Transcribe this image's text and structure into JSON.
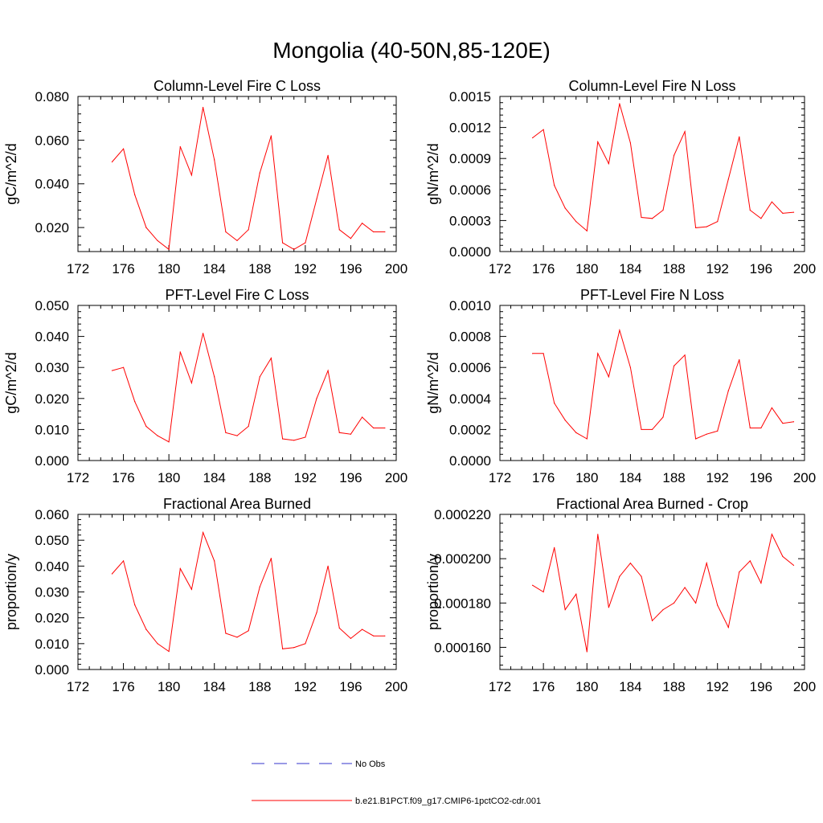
{
  "figure": {
    "title": "Mongolia (40-50N,85-120E)"
  },
  "legend": {
    "items": [
      {
        "label": "No Obs",
        "color": "#3333cc",
        "dash": "dashed"
      },
      {
        "label": "b.e21.B1PCT.f09_g17.CMIP6-1pctCO2-cdr.001",
        "color": "#ff0000",
        "dash": "solid"
      }
    ]
  },
  "chart_data": [
    {
      "type": "line",
      "title": "Column-Level Fire C Loss",
      "ylabel": "gC/m^2/d",
      "xlim": [
        172,
        200
      ],
      "ylim": [
        0.009,
        0.08
      ],
      "xticks": [
        172,
        176,
        180,
        184,
        188,
        192,
        196,
        200
      ],
      "yticks": [
        0.02,
        0.04,
        0.06,
        0.08
      ],
      "ytick_labels": [
        "0.020",
        "0.040",
        "0.060",
        "0.080"
      ],
      "series": [
        {
          "color": "#ff0000",
          "x": [
            175,
            176,
            177,
            178,
            179,
            180,
            181,
            182,
            183,
            184,
            185,
            186,
            187,
            188,
            189,
            190,
            191,
            192,
            193,
            194,
            195,
            196,
            197,
            198,
            199
          ],
          "y": [
            0.05,
            0.056,
            0.035,
            0.02,
            0.014,
            0.01,
            0.057,
            0.044,
            0.075,
            0.051,
            0.018,
            0.014,
            0.019,
            0.045,
            0.062,
            0.013,
            0.01,
            0.013,
            0.033,
            0.053,
            0.019,
            0.015,
            0.022,
            0.018,
            0.018
          ]
        }
      ]
    },
    {
      "type": "line",
      "title": "Column-Level Fire N Loss",
      "ylabel": "gN/m^2/d",
      "xlim": [
        172,
        200
      ],
      "ylim": [
        0.0,
        0.0015
      ],
      "xticks": [
        172,
        176,
        180,
        184,
        188,
        192,
        196,
        200
      ],
      "yticks": [
        0.0,
        0.0003,
        0.0006,
        0.0009,
        0.0012,
        0.0015
      ],
      "ytick_labels": [
        "0.0000",
        "0.0003",
        "0.0006",
        "0.0009",
        "0.0012",
        "0.0015"
      ],
      "series": [
        {
          "color": "#ff0000",
          "x": [
            175,
            176,
            177,
            178,
            179,
            180,
            181,
            182,
            183,
            184,
            185,
            186,
            187,
            188,
            189,
            190,
            191,
            192,
            193,
            194,
            195,
            196,
            197,
            198,
            199
          ],
          "y": [
            0.0011,
            0.00118,
            0.00064,
            0.00042,
            0.00029,
            0.0002,
            0.00106,
            0.00085,
            0.00143,
            0.00105,
            0.00033,
            0.00032,
            0.0004,
            0.00093,
            0.00116,
            0.00023,
            0.00024,
            0.00029,
            0.0007,
            0.00111,
            0.0004,
            0.00032,
            0.00048,
            0.00037,
            0.00038
          ]
        }
      ]
    },
    {
      "type": "line",
      "title": "PFT-Level Fire C Loss",
      "ylabel": "gC/m^2/d",
      "xlim": [
        172,
        200
      ],
      "ylim": [
        0.0,
        0.05
      ],
      "xticks": [
        172,
        176,
        180,
        184,
        188,
        192,
        196,
        200
      ],
      "yticks": [
        0.0,
        0.01,
        0.02,
        0.03,
        0.04,
        0.05
      ],
      "ytick_labels": [
        "0.000",
        "0.010",
        "0.020",
        "0.030",
        "0.040",
        "0.050"
      ],
      "series": [
        {
          "color": "#ff0000",
          "x": [
            175,
            176,
            177,
            178,
            179,
            180,
            181,
            182,
            183,
            184,
            185,
            186,
            187,
            188,
            189,
            190,
            191,
            192,
            193,
            194,
            195,
            196,
            197,
            198,
            199
          ],
          "y": [
            0.029,
            0.03,
            0.019,
            0.011,
            0.008,
            0.006,
            0.035,
            0.025,
            0.041,
            0.027,
            0.009,
            0.008,
            0.011,
            0.027,
            0.033,
            0.007,
            0.0065,
            0.0075,
            0.02,
            0.029,
            0.009,
            0.0085,
            0.014,
            0.0105,
            0.0105
          ]
        }
      ]
    },
    {
      "type": "line",
      "title": "PFT-Level Fire N Loss",
      "ylabel": "gN/m^2/d",
      "xlim": [
        172,
        200
      ],
      "ylim": [
        0.0,
        0.001
      ],
      "xticks": [
        172,
        176,
        180,
        184,
        188,
        192,
        196,
        200
      ],
      "yticks": [
        0.0,
        0.0002,
        0.0004,
        0.0006,
        0.0008,
        0.001
      ],
      "ytick_labels": [
        "0.0000",
        "0.0002",
        "0.0004",
        "0.0006",
        "0.0008",
        "0.0010"
      ],
      "series": [
        {
          "color": "#ff0000",
          "x": [
            175,
            176,
            177,
            178,
            179,
            180,
            181,
            182,
            183,
            184,
            185,
            186,
            187,
            188,
            189,
            190,
            191,
            192,
            193,
            194,
            195,
            196,
            197,
            198,
            199
          ],
          "y": [
            0.00069,
            0.00069,
            0.00037,
            0.00026,
            0.00018,
            0.00014,
            0.00069,
            0.00054,
            0.00084,
            0.0006,
            0.0002,
            0.0002,
            0.00028,
            0.00061,
            0.00068,
            0.00014,
            0.00017,
            0.00019,
            0.00045,
            0.00065,
            0.00021,
            0.00021,
            0.00034,
            0.00024,
            0.00025
          ]
        }
      ]
    },
    {
      "type": "line",
      "title": "Fractional Area Burned",
      "ylabel": "proportion/y",
      "xlim": [
        172,
        200
      ],
      "ylim": [
        0.0,
        0.06
      ],
      "xticks": [
        172,
        176,
        180,
        184,
        188,
        192,
        196,
        200
      ],
      "yticks": [
        0.0,
        0.01,
        0.02,
        0.03,
        0.04,
        0.05,
        0.06
      ],
      "ytick_labels": [
        "0.000",
        "0.010",
        "0.020",
        "0.030",
        "0.040",
        "0.050",
        "0.060"
      ],
      "series": [
        {
          "color": "#ff0000",
          "x": [
            175,
            176,
            177,
            178,
            179,
            180,
            181,
            182,
            183,
            184,
            185,
            186,
            187,
            188,
            189,
            190,
            191,
            192,
            193,
            194,
            195,
            196,
            197,
            198,
            199
          ],
          "y": [
            0.037,
            0.042,
            0.025,
            0.0155,
            0.01,
            0.007,
            0.039,
            0.031,
            0.053,
            0.042,
            0.014,
            0.0125,
            0.015,
            0.032,
            0.043,
            0.008,
            0.0085,
            0.01,
            0.022,
            0.04,
            0.016,
            0.012,
            0.0155,
            0.013,
            0.013
          ]
        }
      ]
    },
    {
      "type": "line",
      "title": "Fractional Area Burned - Crop",
      "ylabel": "proportion/y",
      "xlim": [
        172,
        200
      ],
      "ylim": [
        0.00015,
        0.00022
      ],
      "xticks": [
        172,
        176,
        180,
        184,
        188,
        192,
        196,
        200
      ],
      "yticks": [
        0.00016,
        0.00018,
        0.0002,
        0.00022
      ],
      "ytick_labels": [
        "0.000160",
        "0.000180",
        "0.000200",
        "0.000220"
      ],
      "series": [
        {
          "color": "#ff0000",
          "x": [
            175,
            176,
            177,
            178,
            179,
            180,
            181,
            182,
            183,
            184,
            185,
            186,
            187,
            188,
            189,
            190,
            191,
            192,
            193,
            194,
            195,
            196,
            197,
            198,
            199
          ],
          "y": [
            0.000188,
            0.000185,
            0.000205,
            0.000177,
            0.000184,
            0.000158,
            0.000211,
            0.000178,
            0.000192,
            0.000198,
            0.000192,
            0.000172,
            0.000177,
            0.00018,
            0.000187,
            0.00018,
            0.000198,
            0.000179,
            0.000169,
            0.000194,
            0.000199,
            0.000189,
            0.000211,
            0.000201,
            0.000197
          ]
        }
      ]
    }
  ]
}
